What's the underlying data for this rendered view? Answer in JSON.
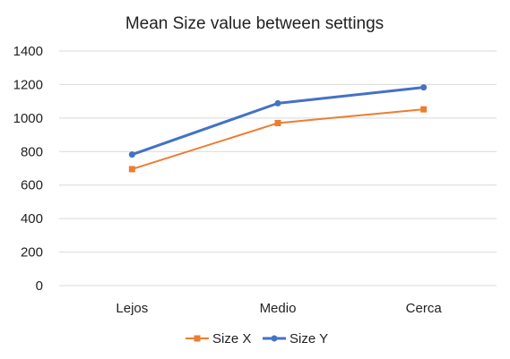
{
  "chart_data": {
    "type": "line",
    "title": "Mean Size value between settings",
    "xlabel": "",
    "ylabel": "",
    "categories": [
      "Lejos",
      "Medio",
      "Cerca"
    ],
    "ylim": [
      0,
      1400
    ],
    "yticks": [
      0,
      200,
      400,
      600,
      800,
      1000,
      1200,
      1400
    ],
    "grid": true,
    "legend_position": "bottom",
    "series": [
      {
        "name": "Size X",
        "values": [
          695,
          970,
          1052
        ],
        "color": "#ED7D31",
        "marker": "square"
      },
      {
        "name": "Size Y",
        "values": [
          782,
          1088,
          1183
        ],
        "color": "#4472C4",
        "marker": "circle"
      }
    ]
  }
}
